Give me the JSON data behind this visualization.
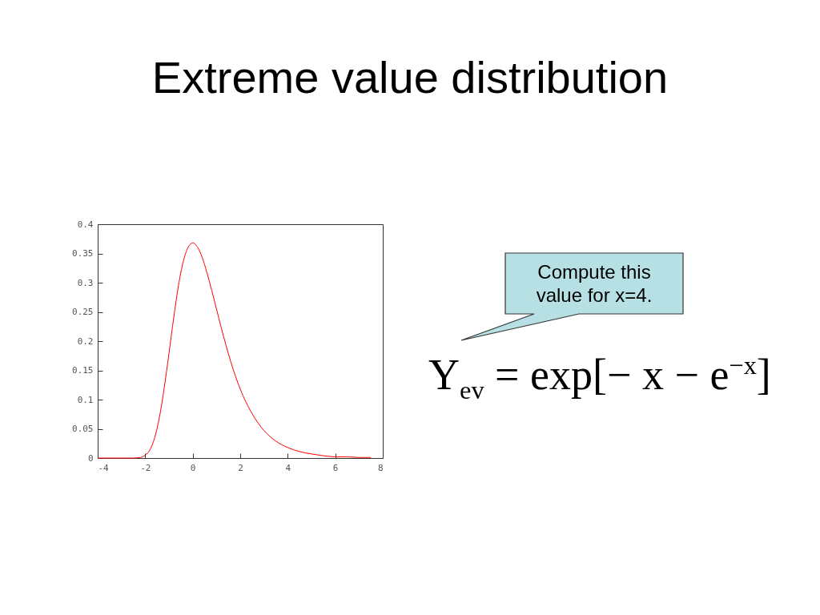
{
  "chart_data": {
    "type": "line",
    "title": "Extreme value distribution",
    "x": [
      -4,
      -3,
      -2.5,
      -2.2,
      -2,
      -1.8,
      -1.6,
      -1.4,
      -1.2,
      -1,
      -0.8,
      -0.6,
      -0.4,
      -0.2,
      0,
      0.2,
      0.4,
      0.6,
      0.8,
      1,
      1.2,
      1.4,
      1.6,
      1.8,
      2,
      2.5,
      3,
      3.5,
      4,
      4.5,
      5,
      5.5,
      6,
      6.5,
      7,
      7.5
    ],
    "series": [
      {
        "color": "#ff0000",
        "values": [
          0,
          0,
          0,
          0.001,
          0.005,
          0.014,
          0.035,
          0.07,
          0.12,
          0.179,
          0.24,
          0.295,
          0.336,
          0.36,
          0.368,
          0.361,
          0.343,
          0.317,
          0.287,
          0.255,
          0.223,
          0.193,
          0.165,
          0.14,
          0.118,
          0.076,
          0.047,
          0.029,
          0.018,
          0.011,
          0.007,
          0.004,
          0.002,
          0.002,
          0.001,
          0.001
        ]
      }
    ],
    "xlim": [
      -4,
      8
    ],
    "ylim": [
      0,
      0.4
    ],
    "xticks": [
      -4,
      -2,
      0,
      2,
      4,
      6,
      8
    ],
    "yticks": [
      0,
      0.05,
      0.1,
      0.15,
      0.2,
      0.25,
      0.3,
      0.35,
      0.4
    ],
    "grid": false,
    "annotations": [
      "Compute this value for x=4.",
      "Y$_{ev}$ = exp[− x − e$^{−x}$]"
    ]
  }
}
